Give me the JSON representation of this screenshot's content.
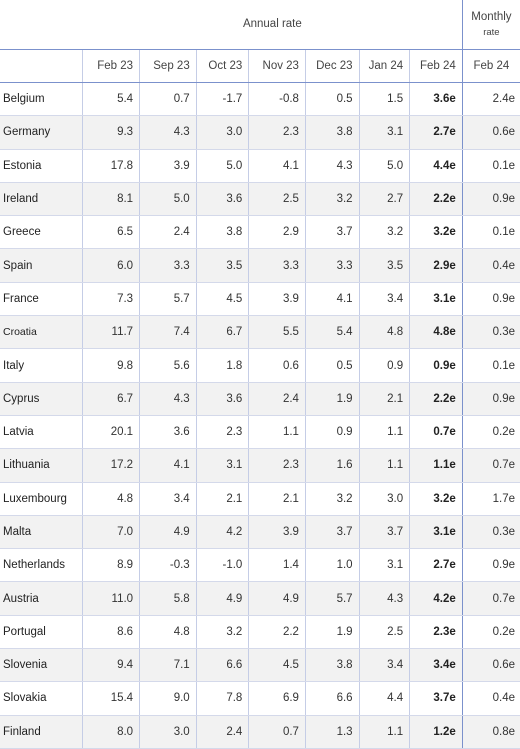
{
  "header": {
    "annual_rate": "Annual rate",
    "monthly_rate_line1": "Monthly",
    "monthly_rate_line2": "rate",
    "annual_columns": [
      "Feb 23",
      "Sep 23",
      "Oct 23",
      "Nov 23",
      "Dec 23",
      "Jan 24",
      "Feb 24"
    ],
    "monthly_column": "Feb 24"
  },
  "rows": [
    {
      "country": "Belgium",
      "annual": [
        "5.4",
        "0.7",
        "-1.7",
        "-0.8",
        "0.5",
        "1.5",
        "3.6e"
      ],
      "monthly": "2.4e"
    },
    {
      "country": "Germany",
      "annual": [
        "9.3",
        "4.3",
        "3.0",
        "2.3",
        "3.8",
        "3.1",
        "2.7e"
      ],
      "monthly": "0.6e"
    },
    {
      "country": "Estonia",
      "annual": [
        "17.8",
        "3.9",
        "5.0",
        "4.1",
        "4.3",
        "5.0",
        "4.4e"
      ],
      "monthly": "0.1e"
    },
    {
      "country": "Ireland",
      "annual": [
        "8.1",
        "5.0",
        "3.6",
        "2.5",
        "3.2",
        "2.7",
        "2.2e"
      ],
      "monthly": "0.9e"
    },
    {
      "country": "Greece",
      "annual": [
        "6.5",
        "2.4",
        "3.8",
        "2.9",
        "3.7",
        "3.2",
        "3.2e"
      ],
      "monthly": "0.1e"
    },
    {
      "country": "Spain",
      "annual": [
        "6.0",
        "3.3",
        "3.5",
        "3.3",
        "3.3",
        "3.5",
        "2.9e"
      ],
      "monthly": "0.4e"
    },
    {
      "country": "France",
      "annual": [
        "7.3",
        "5.7",
        "4.5",
        "3.9",
        "4.1",
        "3.4",
        "3.1e"
      ],
      "monthly": "0.9e"
    },
    {
      "country": "Croatia",
      "annual": [
        "11.7",
        "7.4",
        "6.7",
        "5.5",
        "5.4",
        "4.8",
        "4.8e"
      ],
      "monthly": "0.3e"
    },
    {
      "country": "Italy",
      "annual": [
        "9.8",
        "5.6",
        "1.8",
        "0.6",
        "0.5",
        "0.9",
        "0.9e"
      ],
      "monthly": "0.1e"
    },
    {
      "country": "Cyprus",
      "annual": [
        "6.7",
        "4.3",
        "3.6",
        "2.4",
        "1.9",
        "2.1",
        "2.2e"
      ],
      "monthly": "0.9e"
    },
    {
      "country": "Latvia",
      "annual": [
        "20.1",
        "3.6",
        "2.3",
        "1.1",
        "0.9",
        "1.1",
        "0.7e"
      ],
      "monthly": "0.2e"
    },
    {
      "country": "Lithuania",
      "annual": [
        "17.2",
        "4.1",
        "3.1",
        "2.3",
        "1.6",
        "1.1",
        "1.1e"
      ],
      "monthly": "0.7e"
    },
    {
      "country": "Luxembourg",
      "annual": [
        "4.8",
        "3.4",
        "2.1",
        "2.1",
        "3.2",
        "3.0",
        "3.2e"
      ],
      "monthly": "1.7e"
    },
    {
      "country": "Malta",
      "annual": [
        "7.0",
        "4.9",
        "4.2",
        "3.9",
        "3.7",
        "3.7",
        "3.1e"
      ],
      "monthly": "0.3e"
    },
    {
      "country": "Netherlands",
      "annual": [
        "8.9",
        "-0.3",
        "-1.0",
        "1.4",
        "1.0",
        "3.1",
        "2.7e"
      ],
      "monthly": "0.9e"
    },
    {
      "country": "Austria",
      "annual": [
        "11.0",
        "5.8",
        "4.9",
        "4.9",
        "5.7",
        "4.3",
        "4.2e"
      ],
      "monthly": "0.7e"
    },
    {
      "country": "Portugal",
      "annual": [
        "8.6",
        "4.8",
        "3.2",
        "2.2",
        "1.9",
        "2.5",
        "2.3e"
      ],
      "monthly": "0.2e"
    },
    {
      "country": "Slovenia",
      "annual": [
        "9.4",
        "7.1",
        "6.6",
        "4.5",
        "3.8",
        "3.4",
        "3.4e"
      ],
      "monthly": "0.6e"
    },
    {
      "country": "Slovakia",
      "annual": [
        "15.4",
        "9.0",
        "7.8",
        "6.9",
        "6.6",
        "4.4",
        "3.7e"
      ],
      "monthly": "0.4e"
    },
    {
      "country": "Finland",
      "annual": [
        "8.0",
        "3.0",
        "2.4",
        "0.7",
        "1.3",
        "1.1",
        "1.2e"
      ],
      "monthly": "0.8e"
    }
  ]
}
